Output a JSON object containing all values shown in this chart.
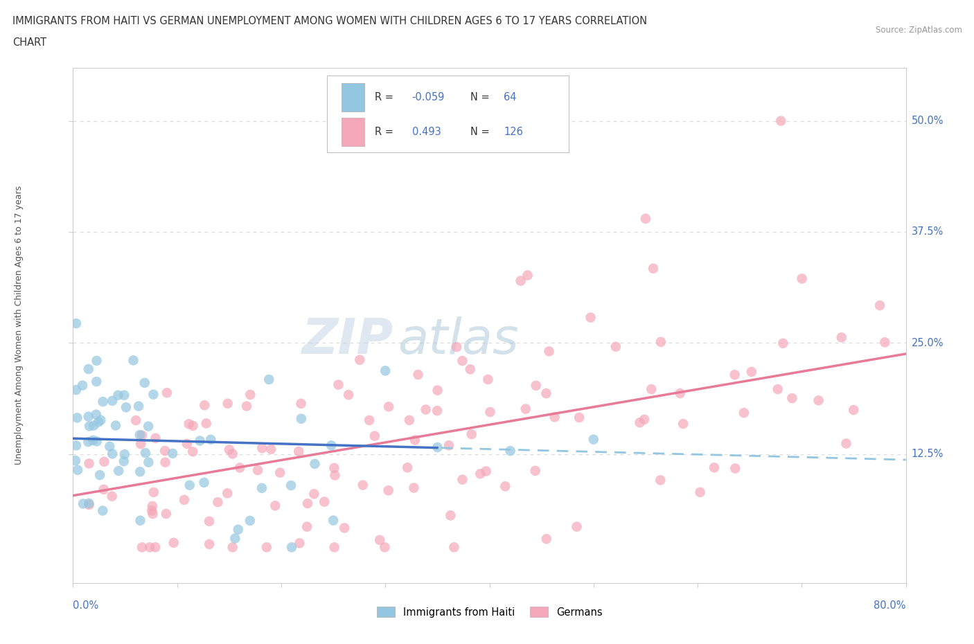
{
  "title_line1": "IMMIGRANTS FROM HAITI VS GERMAN UNEMPLOYMENT AMONG WOMEN WITH CHILDREN AGES 6 TO 17 YEARS CORRELATION",
  "title_line2": "CHART",
  "source": "Source: ZipAtlas.com",
  "ylabel": "Unemployment Among Women with Children Ages 6 to 17 years",
  "yticks": [
    "12.5%",
    "25.0%",
    "37.5%",
    "50.0%"
  ],
  "ytick_vals": [
    0.125,
    0.25,
    0.375,
    0.5
  ],
  "xmin": 0.0,
  "xmax": 0.8,
  "ymin": -0.02,
  "ymax": 0.56,
  "legend_haiti_R": "-0.059",
  "legend_haiti_N": "64",
  "legend_german_R": "0.493",
  "legend_german_N": "126",
  "legend_labels": [
    "Immigrants from Haiti",
    "Germans"
  ],
  "color_haiti": "#93c6e0",
  "color_german": "#f4a7b8",
  "color_trend_haiti_solid": "#4472c4",
  "color_trend_haiti_dash": "#93c6e0",
  "color_trend_german": "#e87a98",
  "watermark_zip": "#c8d8e8",
  "watermark_atlas": "#a0b8d0",
  "text_color_blue": "#4472c4",
  "grid_color": "#dddddd",
  "spine_color": "#cccccc"
}
